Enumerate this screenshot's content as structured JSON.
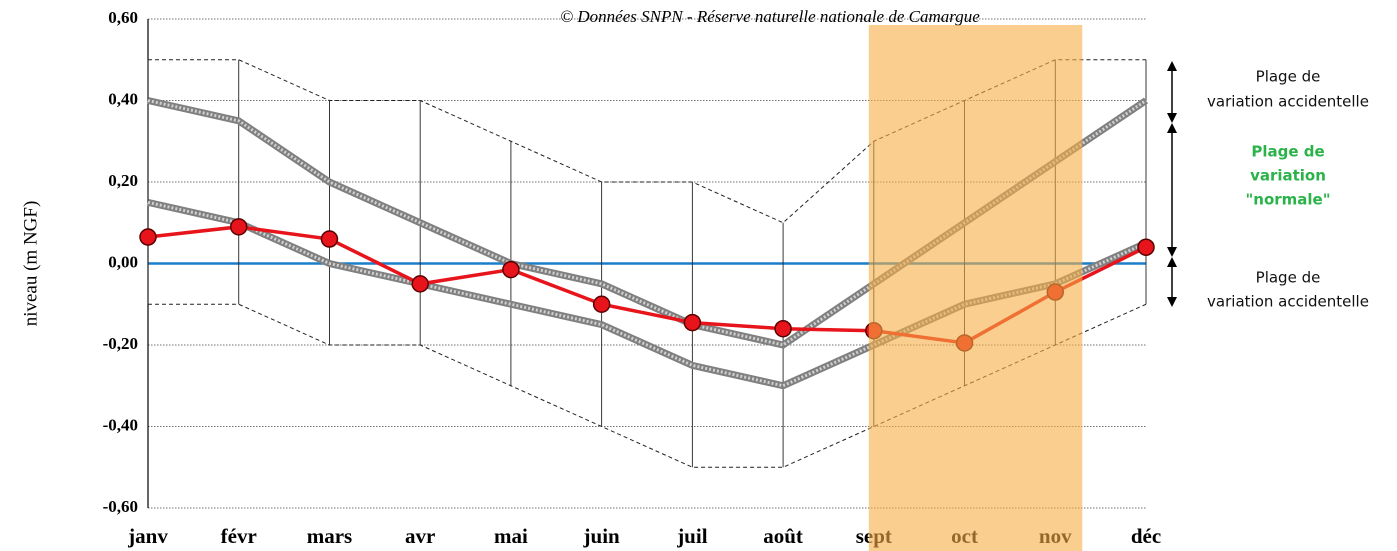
{
  "chart_data": {
    "type": "line",
    "source": "© Données SNPN - Réserve naturelle nationale de Camargue",
    "ylabel": "niveau (m NGF)",
    "categories": [
      "janv",
      "févr",
      "mars",
      "avr",
      "mai",
      "juin",
      "juil",
      "août",
      "sept",
      "oct",
      "nov",
      "déc"
    ],
    "ylim": [
      -0.6,
      0.6
    ],
    "yticks": [
      {
        "value": -0.6,
        "label": "-0,60"
      },
      {
        "value": -0.4,
        "label": "-0,40"
      },
      {
        "value": -0.2,
        "label": "-0,20"
      },
      {
        "value": 0,
        "label": "0,00"
      },
      {
        "value": 0.2,
        "label": "0,20"
      },
      {
        "value": 0.4,
        "label": "0,40"
      },
      {
        "value": 0.6,
        "label": "0,60"
      }
    ],
    "grid": true,
    "zero_line_color": "#1a7fc9",
    "highlight": {
      "from": 8,
      "to": 10,
      "color": "#f5ad45"
    },
    "series": [
      {
        "style": "accidental",
        "color": "#222222",
        "values": [
          0.5,
          0.5,
          0.4,
          0.4,
          0.3,
          0.2,
          0.2,
          0.1,
          0.3,
          0.4,
          0.5,
          0.5
        ]
      },
      {
        "style": "accidental",
        "color": "#222222",
        "values": [
          -0.1,
          -0.1,
          -0.2,
          -0.2,
          -0.3,
          -0.4,
          -0.5,
          -0.5,
          -0.4,
          -0.3,
          -0.2,
          -0.1
        ]
      },
      {
        "style": "normal",
        "color": "#808080",
        "values": [
          0.4,
          0.35,
          0.2,
          0.1,
          0.0,
          -0.05,
          -0.15,
          -0.2,
          -0.05,
          0.1,
          0.25,
          0.4
        ]
      },
      {
        "style": "normal",
        "color": "#808080",
        "values": [
          0.15,
          0.1,
          0.0,
          -0.05,
          -0.1,
          -0.15,
          -0.25,
          -0.3,
          -0.2,
          -0.1,
          -0.05,
          0.05
        ]
      },
      {
        "style": "measured",
        "color": "#e8141c",
        "values": [
          0.065,
          0.09,
          0.06,
          -0.05,
          -0.015,
          -0.1,
          -0.145,
          -0.16,
          -0.165,
          -0.195,
          -0.07,
          0.04
        ]
      }
    ],
    "annotations": [
      {
        "lines": [
          "Plage de",
          "variation accidentelle"
        ],
        "color": "#111111"
      },
      {
        "lines": [
          "Plage de",
          "variation",
          "\"normale\""
        ],
        "color": "#2bb34a"
      },
      {
        "lines": [
          "Plage de",
          "variation accidentelle"
        ],
        "color": "#111111"
      }
    ]
  }
}
